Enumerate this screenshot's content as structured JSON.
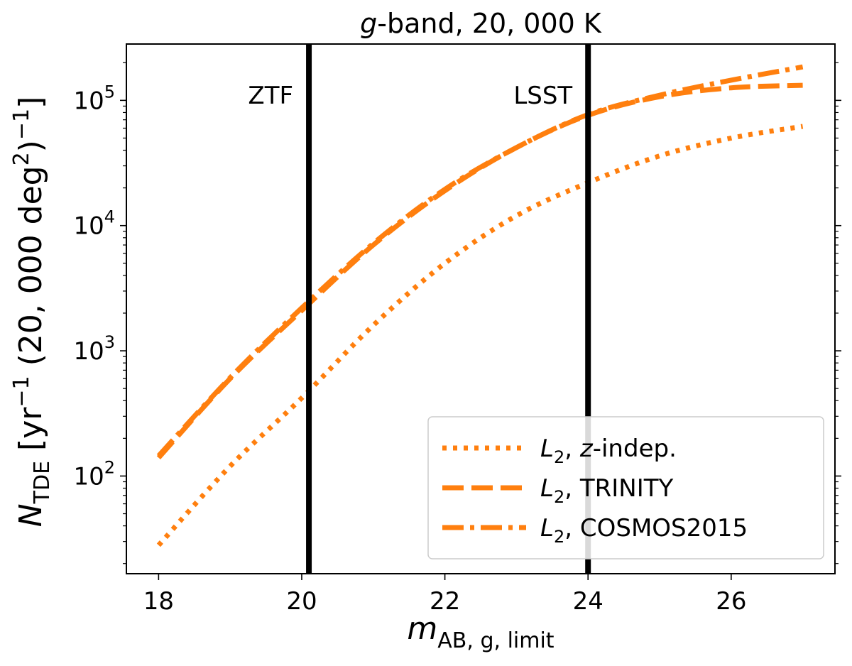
{
  "chart_data": {
    "type": "line",
    "title": {
      "italic": "g",
      "rest": "-band, 20, 000 K"
    },
    "xlabel": {
      "main": "m",
      "sub": "AB, g, limit"
    },
    "ylabel": {
      "main": "N",
      "sub": "TDE",
      "rest": "[yr",
      "sup1": "−1",
      "mid": "(20, 000 deg",
      "sup2": "2",
      "end": ")",
      "sup3": "−1",
      "close": "]"
    },
    "xlim": [
      17.55,
      27.45
    ],
    "ylim_log10": [
      1.22,
      5.45
    ],
    "yscale": "log",
    "xticks": [
      18,
      20,
      22,
      24,
      26
    ],
    "xtick_labels": [
      "18",
      "20",
      "22",
      "24",
      "26"
    ],
    "yticks": [
      {
        "base": "10",
        "exp": "2",
        "log10": 2
      },
      {
        "base": "10",
        "exp": "3",
        "log10": 3
      },
      {
        "base": "10",
        "exp": "4",
        "log10": 4
      },
      {
        "base": "10",
        "exp": "5",
        "log10": 5
      }
    ],
    "x": [
      18,
      19,
      20,
      21,
      22,
      23,
      24,
      25,
      26,
      27
    ],
    "series": [
      {
        "name": "z-indep.",
        "label_sym": "L",
        "label_sub": "2",
        "label_comma": ", ",
        "label_italic": "z",
        "label_rest": "-indep.",
        "style": "dotted",
        "color": "#ff7f0e",
        "values": [
          28,
          120,
          420,
          1600,
          5000,
          12000,
          22000,
          36000,
          50000,
          62000
        ]
      },
      {
        "name": "TRINITY",
        "label_sym": "L",
        "label_sub": "2",
        "label_comma": ", ",
        "label_italic": "",
        "label_rest": "TRINITY",
        "style": "dashed",
        "color": "#ff7f0e",
        "values": [
          140,
          600,
          2100,
          7000,
          19000,
          42000,
          76000,
          107000,
          126000,
          132000
        ]
      },
      {
        "name": "COSMOS2015",
        "label_sym": "L",
        "label_sub": "2",
        "label_comma": ", ",
        "label_italic": "",
        "label_rest": "COSMOS2015",
        "style": "dashdot",
        "color": "#ff7f0e",
        "values": [
          145,
          610,
          2200,
          7200,
          19500,
          42000,
          77000,
          110000,
          145000,
          185000
        ]
      }
    ],
    "vlines": [
      {
        "x": 20.1,
        "label": "ZTF"
      },
      {
        "x": 24.0,
        "label": "LSST"
      }
    ],
    "legend_position": "lower-right"
  }
}
